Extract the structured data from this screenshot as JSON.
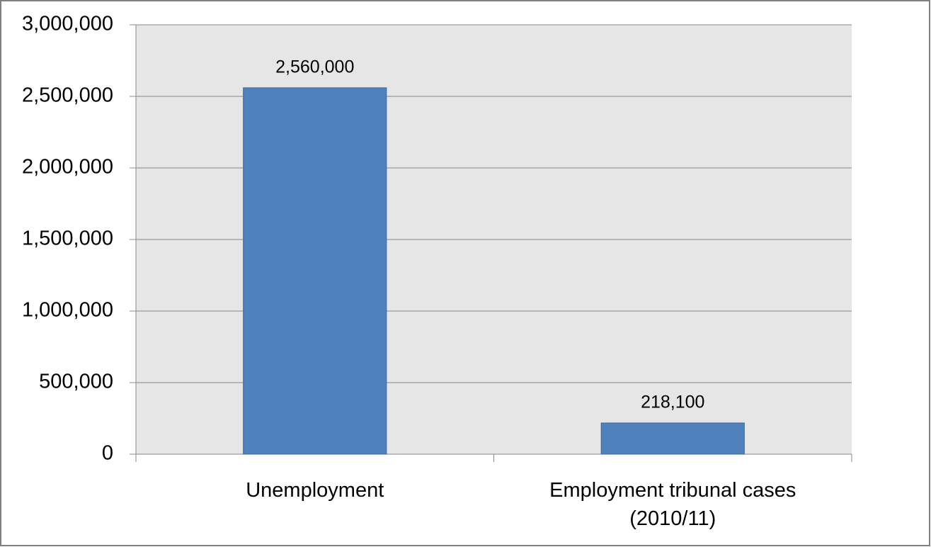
{
  "chart_data": {
    "type": "bar",
    "categories": [
      "Unemployment",
      "Employment tribunal cases (2010/11)"
    ],
    "values": [
      2560000,
      218100
    ],
    "value_labels": [
      "2,560,000",
      "218,100"
    ],
    "color": "#4f81bd",
    "ylim": [
      0,
      3000000
    ],
    "yticks": [
      {
        "value": 0,
        "label": "0"
      },
      {
        "value": 500000,
        "label": "500,000"
      },
      {
        "value": 1000000,
        "label": "1,000,000"
      },
      {
        "value": 1500000,
        "label": "1,500,000"
      },
      {
        "value": 2000000,
        "label": "2,000,000"
      },
      {
        "value": 2500000,
        "label": "2,500,000"
      },
      {
        "value": 3000000,
        "label": "3,000,000"
      }
    ],
    "grid": true
  }
}
